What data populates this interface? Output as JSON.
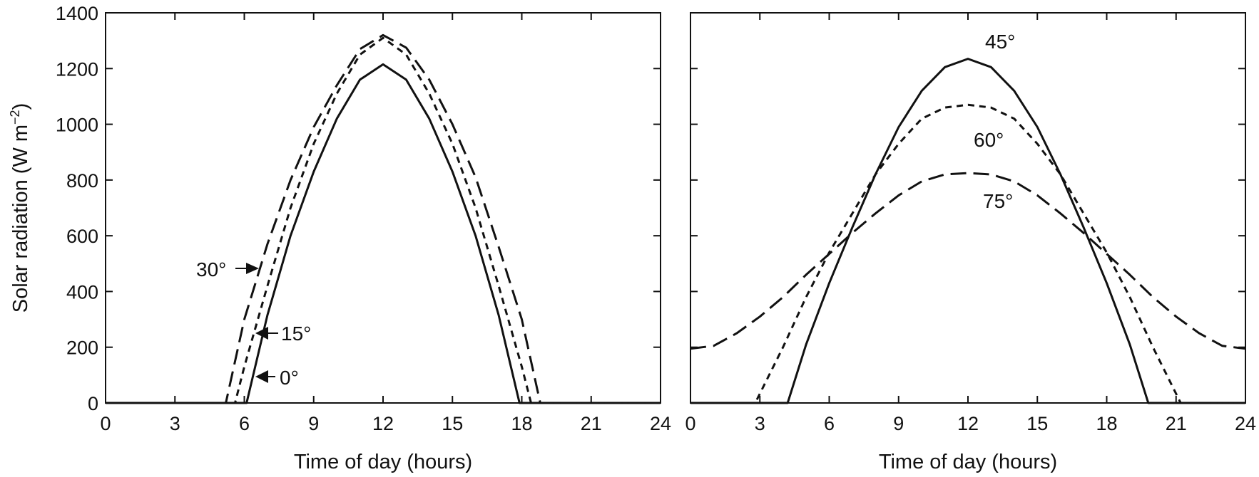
{
  "chart_data": [
    {
      "type": "line",
      "ylabel": "Solar radiation (W m",
      "ylabel_sup": "−2",
      "ylabel_close": ")",
      "xlabel": "Time of day (hours)",
      "xlim": [
        0,
        24
      ],
      "ylim": [
        0,
        1400
      ],
      "xticks": [
        "0",
        "3",
        "6",
        "9",
        "12",
        "15",
        "18",
        "21",
        "24"
      ],
      "yticks": [
        "0",
        "200",
        "400",
        "600",
        "800",
        "1000",
        "1200",
        "1400"
      ],
      "grid": false,
      "series": [
        {
          "name": "0°",
          "style": "solid",
          "x": [
            0,
            6.1,
            7,
            8,
            9,
            10,
            11,
            12,
            13,
            14,
            15,
            16,
            17,
            17.9,
            24
          ],
          "values": [
            0,
            0,
            315,
            600,
            830,
            1020,
            1160,
            1215,
            1160,
            1020,
            830,
            600,
            315,
            0,
            0
          ]
        },
        {
          "name": "15°",
          "style": "short-dash",
          "x": [
            0,
            5.6,
            6,
            7,
            8,
            9,
            10,
            11,
            12,
            13,
            14,
            15,
            16,
            17,
            18,
            18.4,
            24
          ],
          "values": [
            0,
            0,
            130,
            420,
            700,
            930,
            1110,
            1250,
            1310,
            1250,
            1110,
            930,
            700,
            420,
            130,
            0,
            0
          ]
        },
        {
          "name": "30°",
          "style": "long-dash",
          "x": [
            0,
            5.2,
            6,
            7,
            8,
            9,
            10,
            11,
            12,
            13,
            14,
            15,
            16,
            17,
            18,
            18.8,
            24
          ],
          "values": [
            0,
            0,
            300,
            570,
            800,
            990,
            1140,
            1270,
            1320,
            1275,
            1160,
            1000,
            810,
            560,
            300,
            0,
            0
          ]
        }
      ],
      "annotations": [
        "30°",
        "15°",
        "0°"
      ]
    },
    {
      "type": "line",
      "ylabel": "",
      "xlabel": "Time of day (hours)",
      "xlim": [
        0,
        24
      ],
      "ylim": [
        0,
        1400
      ],
      "xticks": [
        "0",
        "3",
        "6",
        "9",
        "12",
        "15",
        "18",
        "21",
        "24"
      ],
      "grid": false,
      "series": [
        {
          "name": "45°",
          "style": "solid",
          "x": [
            0,
            4.2,
            5,
            6,
            7,
            8,
            9,
            10,
            11,
            12,
            13,
            14,
            15,
            16,
            17,
            18,
            19,
            19.8,
            24
          ],
          "values": [
            0,
            0,
            210,
            430,
            630,
            820,
            990,
            1120,
            1205,
            1235,
            1205,
            1120,
            990,
            820,
            630,
            430,
            210,
            0,
            0
          ]
        },
        {
          "name": "60°",
          "style": "short-dash",
          "x": [
            0,
            2.8,
            4,
            5,
            6,
            7,
            8,
            9,
            10,
            11,
            12,
            13,
            14,
            15,
            16,
            17,
            18,
            19,
            20,
            21.2,
            24
          ],
          "values": [
            0,
            0,
            200,
            380,
            540,
            680,
            820,
            930,
            1020,
            1060,
            1070,
            1060,
            1020,
            930,
            820,
            680,
            540,
            380,
            200,
            0,
            0
          ]
        },
        {
          "name": "75°",
          "style": "long-dash",
          "x": [
            0,
            1,
            2,
            3,
            4,
            5,
            6,
            7,
            8,
            9,
            10,
            11,
            12,
            13,
            14,
            15,
            16,
            17,
            18,
            19,
            20,
            21,
            22,
            23,
            24
          ],
          "values": [
            195,
            205,
            250,
            310,
            380,
            460,
            535,
            610,
            680,
            745,
            795,
            820,
            825,
            820,
            795,
            745,
            680,
            610,
            535,
            460,
            380,
            310,
            250,
            205,
            195
          ]
        }
      ],
      "annotations": [
        "45°",
        "60°",
        "75°"
      ]
    }
  ]
}
